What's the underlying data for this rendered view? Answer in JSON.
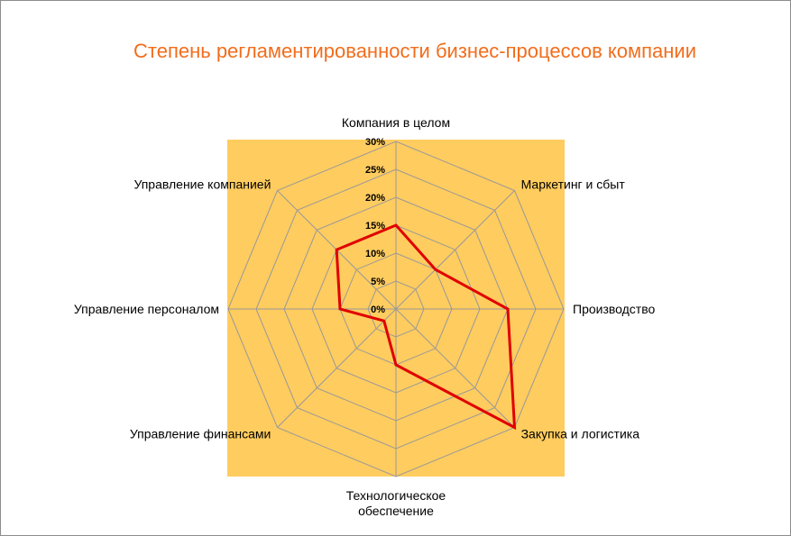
{
  "chart_data": {
    "type": "radar",
    "title": "Степень регламентированности бизнес-процессов компании",
    "categories": [
      "Компания в целом",
      "Маркетинг и сбыт",
      "Производство",
      "Закупка и логистика",
      "Технологическое обеспечение",
      "Управление финансами",
      "Управление персоналом",
      "Управление компанией"
    ],
    "category_lines": [
      [
        "Компания в целом"
      ],
      [
        "Маркетинг и сбыт"
      ],
      [
        "Производство"
      ],
      [
        "Закупка и логистика"
      ],
      [
        "Технологическое",
        "обеспечение"
      ],
      [
        "Управление финансами"
      ],
      [
        "Управление персоналом"
      ],
      [
        "Управление компанией"
      ]
    ],
    "series": [
      {
        "values": [
          15,
          10,
          20,
          30,
          10,
          3,
          10,
          15
        ]
      }
    ],
    "rlim": [
      0,
      30
    ],
    "ticks": [
      0,
      5,
      10,
      15,
      20,
      25,
      30
    ],
    "tick_labels": [
      "0%",
      "5%",
      "10%",
      "15%",
      "20%",
      "25%",
      "30%"
    ],
    "grid": true,
    "legend": "none",
    "colors": {
      "plot_background": "#ffcc5f",
      "grid": "#999999",
      "series": "#e00000",
      "title": "#f26d1c",
      "labels": "#000000"
    }
  }
}
